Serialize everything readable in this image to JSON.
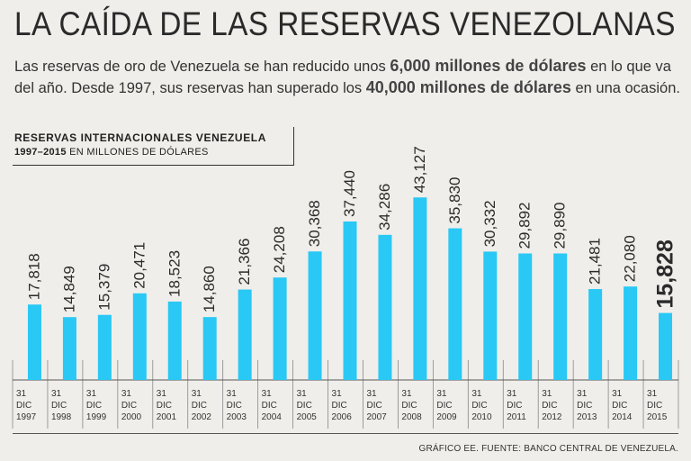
{
  "header": {
    "title": "LA CAÍDA DE LAS RESERVAS VENEZOLANAS",
    "subtitle_parts": [
      {
        "text": "Las reservas de oro de Venezuela se han reducido unos ",
        "bold": false
      },
      {
        "text": "6,000 millones de dólares",
        "bold": true
      },
      {
        "text": " en lo que va del año. Desde 1997, sus reservas han superado los ",
        "bold": false
      },
      {
        "text": "40,000 millones de dólares",
        "bold": true
      },
      {
        "text": " en una ocasión.",
        "bold": false
      }
    ]
  },
  "chart_box": {
    "title": "RESERVAS INTERNACIONALES VENEZUELA",
    "range": "1997–2015",
    "unit": " EN MILLONES DE DÓLARES"
  },
  "source": "GRÁFICO EE. FUENTE: BANCO CENTRAL DE VENEZUELA.",
  "chart_data": {
    "type": "bar",
    "title": "RESERVAS INTERNACIONALES VENEZUELA 1997–2015 EN MILLONES DE DÓLARES",
    "categories": [
      [
        "31",
        "DIC",
        "1997"
      ],
      [
        "31",
        "DIC",
        "1998"
      ],
      [
        "31",
        "DIC",
        "1999"
      ],
      [
        "31",
        "DIC",
        "2000"
      ],
      [
        "31",
        "DIC",
        "2001"
      ],
      [
        "31",
        "DIC",
        "2002"
      ],
      [
        "31",
        "DIC",
        "2003"
      ],
      [
        "31",
        "DIC",
        "2004"
      ],
      [
        "31",
        "DIC",
        "2005"
      ],
      [
        "31",
        "DIC",
        "2006"
      ],
      [
        "31",
        "DIC",
        "2007"
      ],
      [
        "31",
        "DIC",
        "2008"
      ],
      [
        "31",
        "DIC",
        "2009"
      ],
      [
        "31",
        "DIC",
        "2010"
      ],
      [
        "31",
        "DIC",
        "2011"
      ],
      [
        "31",
        "DIC",
        "2012"
      ],
      [
        "31",
        "DIC",
        "2013"
      ],
      [
        "31",
        "DIC",
        "2014"
      ],
      [
        "31",
        "DIC",
        "2015"
      ]
    ],
    "values": [
      17818,
      14849,
      15379,
      20471,
      18523,
      14860,
      21366,
      24208,
      30368,
      37440,
      34286,
      43127,
      35830,
      30332,
      29892,
      29890,
      21481,
      22080,
      15828
    ],
    "labels": [
      "17,818",
      "14,849",
      "15,379",
      "20,471",
      "18,523",
      "14,860",
      "21,366",
      "24,208",
      "30,368",
      "37,440",
      "34,286",
      "43,127",
      "35,830",
      "30,332",
      "29,892",
      "29,890",
      "21,481",
      "22,080",
      "15,828"
    ],
    "highlight_index": 18,
    "ylim": [
      0,
      45000
    ],
    "grid": false,
    "colors": {
      "bar": "#29c8f5",
      "text": "#2b2b2b",
      "divider": "#888888"
    }
  }
}
